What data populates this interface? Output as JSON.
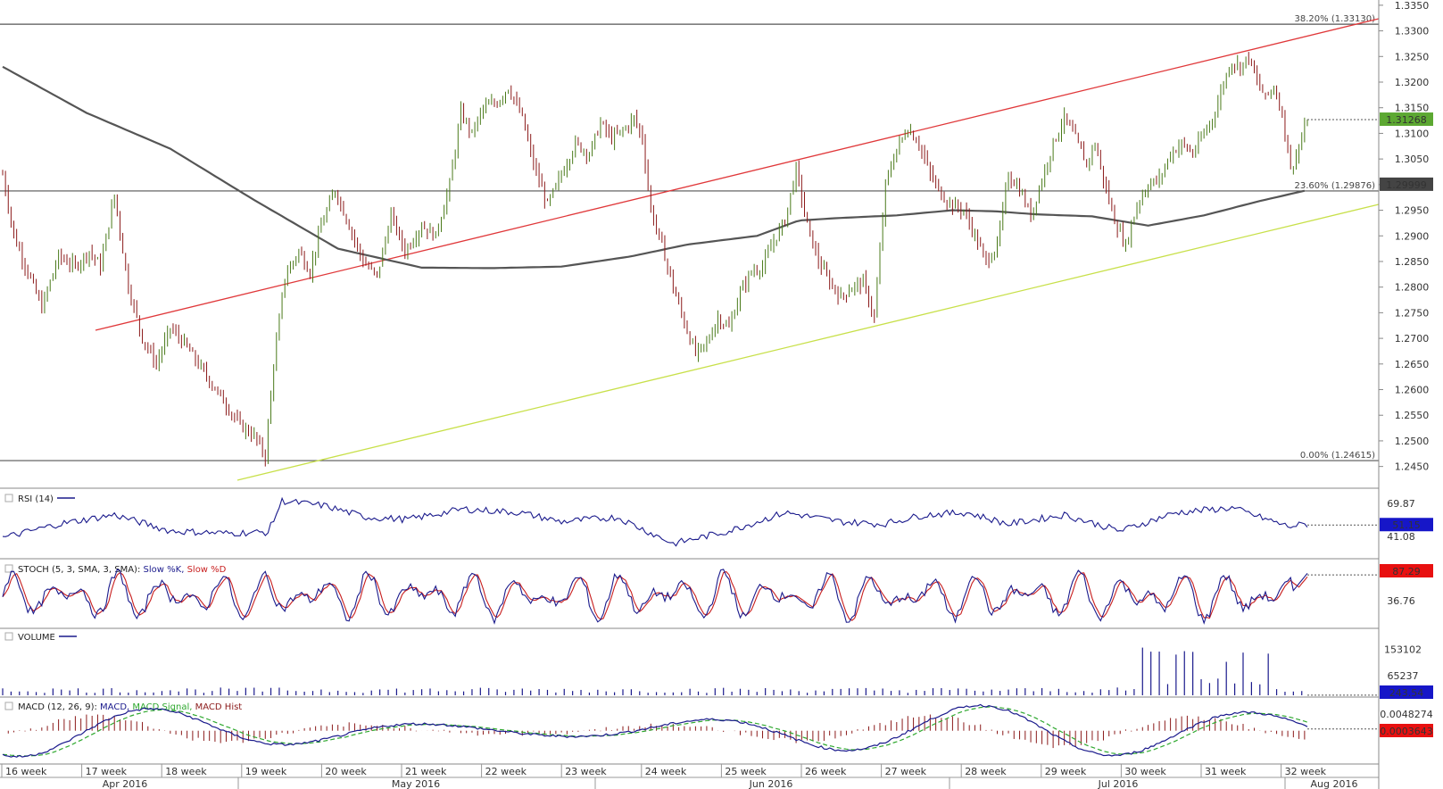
{
  "chart_data": {
    "type": "line",
    "title": "",
    "xlabel": "",
    "ylabel": "",
    "ylim": [
      1.2425,
      1.3355
    ],
    "price_ticks": [
      "1.3350",
      "1.3300",
      "1.3250",
      "1.3200",
      "1.3150",
      "1.3100",
      "1.3050",
      "1.3000",
      "1.2950",
      "1.2900",
      "1.2850",
      "1.2800",
      "1.2750",
      "1.2700",
      "1.2650",
      "1.2600",
      "1.2550",
      "1.2500",
      "1.2450"
    ],
    "fib_levels": [
      {
        "label": "38.20% (1.33130)",
        "value": 1.3313
      },
      {
        "label": "23.60% (1.29876)",
        "value": 1.29876
      },
      {
        "label": "0.00% (1.24615)",
        "value": 1.24615
      }
    ],
    "last_price_label": "1.31268",
    "last_price": 1.31268,
    "ma_value_label": "1.29999",
    "ma_value": 1.29999,
    "colors": {
      "up_bar": "#4a7a1a",
      "down_bar": "#8b1a1a",
      "upper_trend": "#e0383a",
      "lower_trend": "#c8e04a",
      "ma": "#555555",
      "last_price_bg": "#5ca832",
      "ma_bg": "#444444"
    },
    "week_labels": [
      "16 week",
      "17 week",
      "18 week",
      "19 week",
      "20 week",
      "21 week",
      "22 week",
      "23 week",
      "24 week",
      "25 week",
      "26 week",
      "27 week",
      "28 week",
      "29 week",
      "30 week",
      "31 week",
      "32 week"
    ],
    "month_labels": [
      "Apr 2016",
      "May 2016",
      "Jun 2016",
      "Jul 2016",
      "Aug 2016"
    ],
    "price_anchors": [
      [
        0,
        1.302
      ],
      [
        4,
        1.29
      ],
      [
        9,
        1.283
      ],
      [
        14,
        1.276
      ],
      [
        20,
        1.286
      ],
      [
        26,
        1.284
      ],
      [
        31,
        1.287
      ],
      [
        35,
        1.284
      ],
      [
        40,
        1.298
      ],
      [
        45,
        1.28
      ],
      [
        50,
        1.27
      ],
      [
        55,
        1.265
      ],
      [
        60,
        1.272
      ],
      [
        65,
        1.269
      ],
      [
        70,
        1.265
      ],
      [
        75,
        1.261
      ],
      [
        80,
        1.257
      ],
      [
        85,
        1.253
      ],
      [
        90,
        1.251
      ],
      [
        94,
        1.247
      ],
      [
        97,
        1.265
      ],
      [
        101,
        1.282
      ],
      [
        106,
        1.287
      ],
      [
        110,
        1.283
      ],
      [
        114,
        1.292
      ],
      [
        119,
        1.299
      ],
      [
        124,
        1.292
      ],
      [
        129,
        1.285
      ],
      [
        134,
        1.282
      ],
      [
        139,
        1.294
      ],
      [
        144,
        1.287
      ],
      [
        150,
        1.292
      ],
      [
        155,
        1.29
      ],
      [
        160,
        1.3
      ],
      [
        164,
        1.314
      ],
      [
        168,
        1.31
      ],
      [
        172,
        1.315
      ],
      [
        177,
        1.316
      ],
      [
        181,
        1.319
      ],
      [
        186,
        1.313
      ],
      [
        190,
        1.304
      ],
      [
        195,
        1.296
      ],
      [
        200,
        1.302
      ],
      [
        205,
        1.308
      ],
      [
        210,
        1.306
      ],
      [
        214,
        1.312
      ],
      [
        218,
        1.309
      ],
      [
        223,
        1.311
      ],
      [
        226,
        1.313
      ],
      [
        229,
        1.309
      ],
      [
        232,
        1.295
      ],
      [
        236,
        1.288
      ],
      [
        240,
        1.28
      ],
      [
        244,
        1.273
      ],
      [
        248,
        1.267
      ],
      [
        252,
        1.269
      ],
      [
        256,
        1.274
      ],
      [
        260,
        1.272
      ],
      [
        264,
        1.279
      ],
      [
        268,
        1.283
      ],
      [
        272,
        1.284
      ],
      [
        276,
        1.289
      ],
      [
        280,
        1.293
      ],
      [
        284,
        1.303
      ],
      [
        288,
        1.292
      ],
      [
        292,
        1.285
      ],
      [
        296,
        1.281
      ],
      [
        300,
        1.278
      ],
      [
        304,
        1.28
      ],
      [
        308,
        1.281
      ],
      [
        312,
        1.274
      ],
      [
        316,
        1.3
      ],
      [
        320,
        1.307
      ],
      [
        324,
        1.311
      ],
      [
        328,
        1.308
      ],
      [
        332,
        1.302
      ],
      [
        336,
        1.298
      ],
      [
        340,
        1.296
      ],
      [
        344,
        1.295
      ],
      [
        348,
        1.29
      ],
      [
        352,
        1.285
      ],
      [
        356,
        1.288
      ],
      [
        360,
        1.302
      ],
      [
        364,
        1.299
      ],
      [
        368,
        1.294
      ],
      [
        372,
        1.301
      ],
      [
        376,
        1.308
      ],
      [
        380,
        1.313
      ],
      [
        384,
        1.309
      ],
      [
        388,
        1.304
      ],
      [
        391,
        1.308
      ],
      [
        394,
        1.301
      ],
      [
        398,
        1.293
      ],
      [
        402,
        1.288
      ],
      [
        406,
        1.296
      ],
      [
        410,
        1.3
      ],
      [
        414,
        1.301
      ],
      [
        418,
        1.306
      ],
      [
        422,
        1.308
      ],
      [
        426,
        1.306
      ],
      [
        430,
        1.31
      ],
      [
        434,
        1.314
      ],
      [
        437,
        1.32
      ],
      [
        440,
        1.324
      ],
      [
        443,
        1.323
      ],
      [
        446,
        1.325
      ],
      [
        449,
        1.32
      ],
      [
        452,
        1.317
      ],
      [
        455,
        1.319
      ],
      [
        458,
        1.314
      ],
      [
        461,
        1.303
      ],
      [
        464,
        1.307
      ],
      [
        467,
        1.3126
      ]
    ],
    "ma_anchors": [
      [
        0,
        1.323
      ],
      [
        30,
        1.314
      ],
      [
        60,
        1.307
      ],
      [
        90,
        1.297
      ],
      [
        120,
        1.2875
      ],
      [
        150,
        1.2838
      ],
      [
        175,
        1.2837
      ],
      [
        200,
        1.284
      ],
      [
        225,
        1.286
      ],
      [
        245,
        1.2883
      ],
      [
        270,
        1.29
      ],
      [
        285,
        1.293
      ],
      [
        300,
        1.2935
      ],
      [
        320,
        1.294
      ],
      [
        340,
        1.295
      ],
      [
        355,
        1.2948
      ],
      [
        370,
        1.2942
      ],
      [
        390,
        1.2938
      ],
      [
        410,
        1.292
      ],
      [
        430,
        1.294
      ],
      [
        450,
        1.2968
      ],
      [
        466,
        1.2988
      ]
    ],
    "bar_count": 468,
    "rsi": {
      "title": "RSI (14)",
      "ticks": [
        "69.87",
        "41.08"
      ],
      "tick_values": [
        69.87,
        41.08
      ],
      "ylim": [
        25,
        80
      ],
      "last_label": "51.15",
      "last": 51.15,
      "color": "#1a1a8c",
      "anchors": [
        [
          0,
          40
        ],
        [
          20,
          52
        ],
        [
          40,
          60
        ],
        [
          60,
          46
        ],
        [
          80,
          44
        ],
        [
          95,
          45
        ],
        [
          100,
          72
        ],
        [
          115,
          68
        ],
        [
          130,
          58
        ],
        [
          145,
          56
        ],
        [
          165,
          65
        ],
        [
          185,
          62
        ],
        [
          200,
          54
        ],
        [
          220,
          58
        ],
        [
          240,
          35
        ],
        [
          260,
          46
        ],
        [
          280,
          62
        ],
        [
          300,
          54
        ],
        [
          315,
          52
        ],
        [
          330,
          60
        ],
        [
          345,
          62
        ],
        [
          360,
          52
        ],
        [
          380,
          60
        ],
        [
          400,
          46
        ],
        [
          420,
          62
        ],
        [
          440,
          66
        ],
        [
          460,
          50
        ],
        [
          468,
          52
        ]
      ]
    },
    "stoch": {
      "title": "STOCH (5, 3, SMA, 3, SMA):",
      "k_label": "Slow %K,",
      "d_label": "Slow %D",
      "ticks": [
        "36.76"
      ],
      "tick_values": [
        36.76
      ],
      "ylim": [
        0,
        100
      ],
      "last_label": "87.29",
      "last": 87.29,
      "k_color": "#1a1a8c",
      "d_color": "#c81e1e"
    },
    "volume": {
      "title": "VOLUME",
      "ticks": [
        "153102",
        "65237"
      ],
      "tick_values": [
        153102,
        65237
      ],
      "ylim": [
        0,
        200000
      ],
      "last_label": "243.54",
      "last": 243.54,
      "color": "#1a1a8c"
    },
    "macd": {
      "title": "MACD (12, 26, 9):",
      "macd_label": "MACD,",
      "signal_label": "MACD Signal,",
      "hist_label": "MACD Hist",
      "ticks": [
        "0.0048274"
      ],
      "tick_values": [
        0.0048274
      ],
      "ylim": [
        -0.0065,
        0.0062
      ],
      "last_label": "0.0003643",
      "last": 0.0003643,
      "macd_color": "#1a1a8c",
      "signal_color": "#2ea82e",
      "hist_color": "#8b1a1a"
    }
  }
}
